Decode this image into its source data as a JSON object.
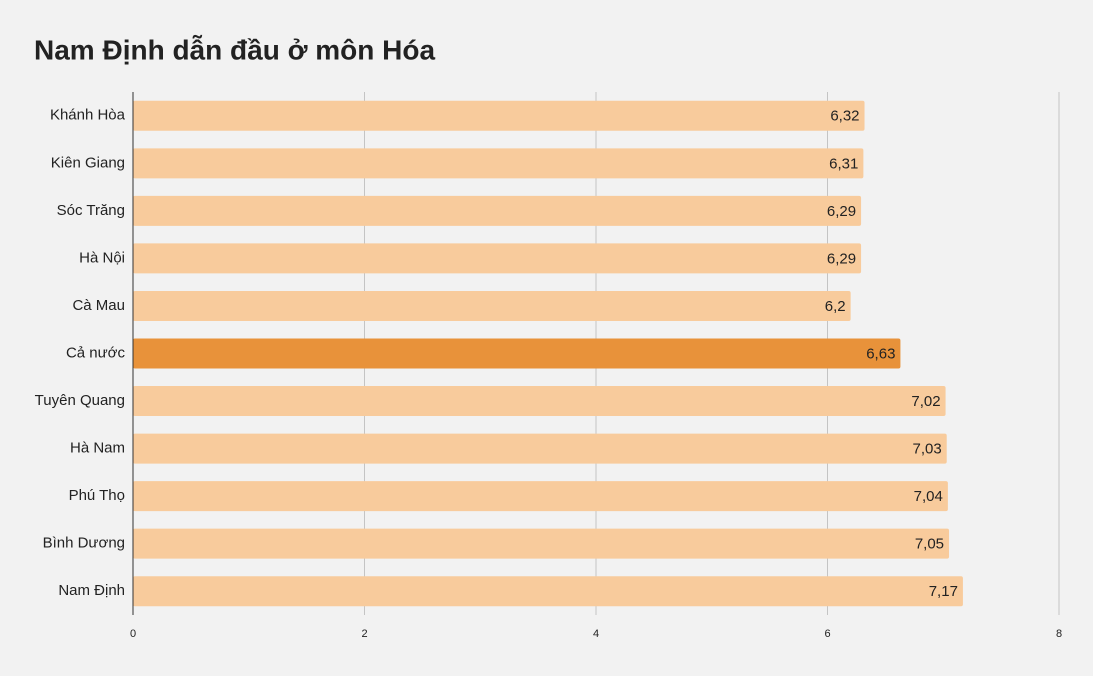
{
  "chart_data": {
    "type": "bar",
    "orientation": "horizontal",
    "title": "Nam Định dẫn đầu ở môn Hóa",
    "categories": [
      "Khánh Hòa",
      "Kiên Giang",
      "Sóc Trăng",
      "Hà Nội",
      "Cà Mau",
      "Cả nước",
      "Tuyên Quang",
      "Hà Nam",
      "Phú Thọ",
      "Bình Dương",
      "Nam Định"
    ],
    "values": [
      6.32,
      6.31,
      6.29,
      6.29,
      6.2,
      6.63,
      7.02,
      7.03,
      7.04,
      7.05,
      7.17
    ],
    "value_labels": [
      "6,32",
      "6,31",
      "6,29",
      "6,29",
      "6,2",
      "6,63",
      "7,02",
      "7,03",
      "7,04",
      "7,05",
      "7,17"
    ],
    "colors": [
      "#f8cb9c",
      "#f8cb9c",
      "#f8cb9c",
      "#f8cb9c",
      "#f8cb9c",
      "#e8923a",
      "#f8cb9c",
      "#f8cb9c",
      "#f8cb9c",
      "#f8cb9c",
      "#f8cb9c"
    ],
    "xlim": [
      0,
      8
    ],
    "xticks": [
      0,
      2,
      4,
      6,
      8
    ],
    "grid": true
  }
}
